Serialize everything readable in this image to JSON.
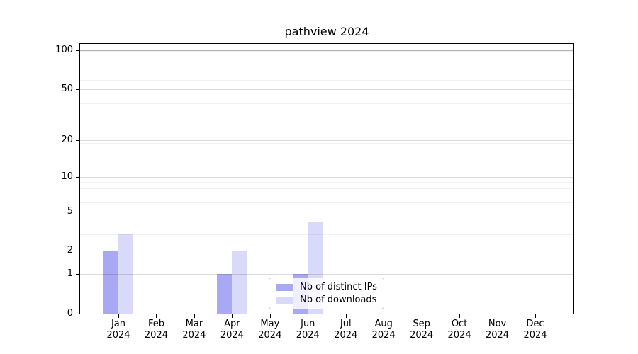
{
  "chart_data": {
    "type": "bar",
    "title": "pathview 2024",
    "categories": [
      "Jan",
      "Feb",
      "Mar",
      "Apr",
      "May",
      "Jun",
      "Jul",
      "Aug",
      "Sep",
      "Oct",
      "Nov",
      "Dec"
    ],
    "category_year": "2024",
    "series": [
      {
        "name": "Nb of distinct IPs",
        "color": "#a8a8f4",
        "values": [
          2,
          0,
          0,
          1,
          0,
          1,
          0,
          0,
          0,
          0,
          0,
          0
        ]
      },
      {
        "name": "Nb of downloads",
        "color": "#d9d9fa",
        "values": [
          3,
          0,
          0,
          2,
          0,
          4,
          0,
          0,
          0,
          0,
          0,
          0
        ]
      }
    ],
    "xlabel": "",
    "ylabel": "",
    "yscale": "log1p",
    "ylim": [
      0,
      112
    ],
    "yticks_major": [
      0,
      1,
      2,
      5,
      10,
      20,
      50,
      100
    ],
    "yticks_minor": [
      3,
      4,
      6,
      7,
      8,
      9,
      19,
      29,
      39,
      49,
      59,
      69,
      79,
      89,
      99
    ],
    "grid": "on",
    "legend_position": "lower center",
    "colors": {
      "spine": "#000000",
      "grid_major": "#dcdcdc",
      "grid_top": "#b3b3b3",
      "grid_minor": "#f1f1f1",
      "background": "#ffffff"
    }
  }
}
